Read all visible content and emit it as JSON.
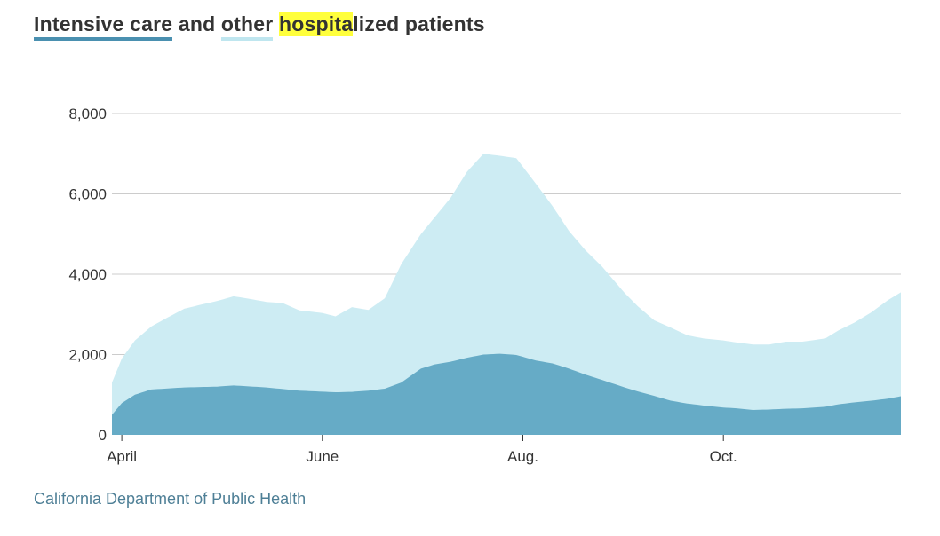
{
  "title": {
    "icu_label": "Intensive care",
    "and": "and",
    "other_label": "other",
    "hospital_highlight": "hospita",
    "hospital_rest": "lized patients"
  },
  "source": "California Department of Public Health",
  "colors": {
    "icu": "#66abc6",
    "icu_key": "#4a90b0",
    "other": "#cdecf3",
    "other_key": "#bfe6ef",
    "highlight": "#ffff3c",
    "grid": "#cccccc",
    "text": "#333333",
    "source": "#4e7f96"
  },
  "chart_data": {
    "type": "area",
    "stacked": true,
    "x_unit": "day",
    "x_start": "2020-03-29",
    "x_end": "2020-11-24",
    "ylim": [
      0,
      8000
    ],
    "y_ticks": [
      0,
      2000,
      4000,
      6000,
      8000
    ],
    "y_tick_labels": [
      "0",
      "2,000",
      "4,000",
      "6,000",
      "8,000"
    ],
    "x_ticks": [
      {
        "date": "2020-04-01",
        "label": "April"
      },
      {
        "date": "2020-06-01",
        "label": "June"
      },
      {
        "date": "2020-08-01",
        "label": "Aug."
      },
      {
        "date": "2020-10-01",
        "label": "Oct."
      }
    ],
    "grid": "horizontal",
    "series": [
      {
        "name": "Intensive care",
        "points": [
          [
            "2020-03-29",
            500
          ],
          [
            "2020-04-01",
            790
          ],
          [
            "2020-04-05",
            1000
          ],
          [
            "2020-04-10",
            1130
          ],
          [
            "2020-04-20",
            1180
          ],
          [
            "2020-04-30",
            1200
          ],
          [
            "2020-05-05",
            1230
          ],
          [
            "2020-05-15",
            1180
          ],
          [
            "2020-05-25",
            1100
          ],
          [
            "2020-06-05",
            1060
          ],
          [
            "2020-06-10",
            1070
          ],
          [
            "2020-06-15",
            1100
          ],
          [
            "2020-06-20",
            1150
          ],
          [
            "2020-06-25",
            1300
          ],
          [
            "2020-07-01",
            1650
          ],
          [
            "2020-07-05",
            1750
          ],
          [
            "2020-07-10",
            1820
          ],
          [
            "2020-07-15",
            1920
          ],
          [
            "2020-07-20",
            2000
          ],
          [
            "2020-07-25",
            2020
          ],
          [
            "2020-07-30",
            1990
          ],
          [
            "2020-08-05",
            1850
          ],
          [
            "2020-08-10",
            1780
          ],
          [
            "2020-08-15",
            1650
          ],
          [
            "2020-08-20",
            1500
          ],
          [
            "2020-08-25",
            1370
          ],
          [
            "2020-09-01",
            1180
          ],
          [
            "2020-09-05",
            1080
          ],
          [
            "2020-09-10",
            970
          ],
          [
            "2020-09-15",
            850
          ],
          [
            "2020-09-20",
            780
          ],
          [
            "2020-09-25",
            730
          ],
          [
            "2020-10-01",
            680
          ],
          [
            "2020-10-05",
            660
          ],
          [
            "2020-10-10",
            620
          ],
          [
            "2020-10-15",
            630
          ],
          [
            "2020-10-20",
            650
          ],
          [
            "2020-10-25",
            660
          ],
          [
            "2020-11-01",
            700
          ],
          [
            "2020-11-05",
            760
          ],
          [
            "2020-11-10",
            810
          ],
          [
            "2020-11-15",
            850
          ],
          [
            "2020-11-20",
            900
          ],
          [
            "2020-11-24",
            960
          ]
        ]
      },
      {
        "name": "Other hospitalized",
        "points": [
          [
            "2020-03-29",
            800
          ],
          [
            "2020-04-01",
            1110
          ],
          [
            "2020-04-05",
            1350
          ],
          [
            "2020-04-10",
            1570
          ],
          [
            "2020-04-15",
            1770
          ],
          [
            "2020-04-20",
            1960
          ],
          [
            "2020-04-25",
            2050
          ],
          [
            "2020-05-01",
            2150
          ],
          [
            "2020-05-05",
            2220
          ],
          [
            "2020-05-10",
            2180
          ],
          [
            "2020-05-15",
            2130
          ],
          [
            "2020-05-20",
            2140
          ],
          [
            "2020-05-25",
            2000
          ],
          [
            "2020-06-01",
            1960
          ],
          [
            "2020-06-05",
            1890
          ],
          [
            "2020-06-10",
            2110
          ],
          [
            "2020-06-15",
            2010
          ],
          [
            "2020-06-20",
            2250
          ],
          [
            "2020-06-25",
            2950
          ],
          [
            "2020-07-01",
            3350
          ],
          [
            "2020-07-05",
            3650
          ],
          [
            "2020-07-10",
            4080
          ],
          [
            "2020-07-15",
            4630
          ],
          [
            "2020-07-20",
            5000
          ],
          [
            "2020-07-25",
            4930
          ],
          [
            "2020-07-30",
            4900
          ],
          [
            "2020-08-05",
            4400
          ],
          [
            "2020-08-10",
            3920
          ],
          [
            "2020-08-15",
            3430
          ],
          [
            "2020-08-20",
            3100
          ],
          [
            "2020-08-25",
            2830
          ],
          [
            "2020-09-01",
            2350
          ],
          [
            "2020-09-05",
            2120
          ],
          [
            "2020-09-10",
            1880
          ],
          [
            "2020-09-15",
            1820
          ],
          [
            "2020-09-20",
            1700
          ],
          [
            "2020-09-25",
            1670
          ],
          [
            "2020-10-01",
            1670
          ],
          [
            "2020-10-05",
            1640
          ],
          [
            "2020-10-10",
            1630
          ],
          [
            "2020-10-15",
            1620
          ],
          [
            "2020-10-20",
            1670
          ],
          [
            "2020-10-25",
            1660
          ],
          [
            "2020-11-01",
            1700
          ],
          [
            "2020-11-05",
            1840
          ],
          [
            "2020-11-10",
            1990
          ],
          [
            "2020-11-15",
            2200
          ],
          [
            "2020-11-20",
            2450
          ],
          [
            "2020-11-24",
            2590
          ]
        ]
      }
    ]
  }
}
